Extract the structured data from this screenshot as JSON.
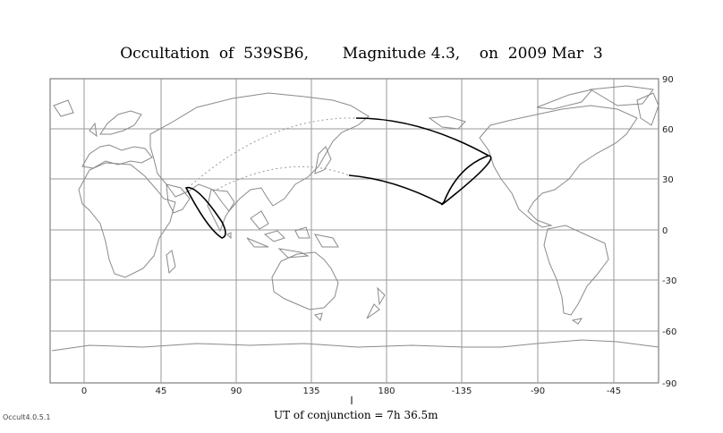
{
  "title": "Occultation  of  539SB6,       Magnitude 4.3,    on  2009 Mar  3",
  "x_ticks": [
    "0",
    "45",
    "90",
    "135",
    "180",
    "-135",
    "-90",
    "-45"
  ],
  "y_ticks": [
    "90",
    "60",
    "30",
    "0",
    "-30",
    "-60",
    "-90"
  ],
  "ut_label": "UT of conjunction =  7h 36.5m",
  "version": "Occult4.0.5.1",
  "colors": {
    "coast": "#8a8a8a",
    "grid": "#9a9a9a",
    "path": "#000000",
    "dotted": "#9a9a9a"
  }
}
